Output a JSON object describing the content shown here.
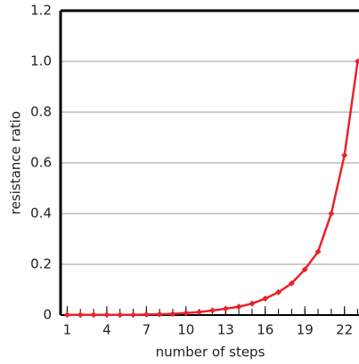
{
  "chart_data": {
    "type": "line",
    "x_label": "number of steps",
    "y_label": "resistance ratio",
    "x": [
      1,
      2,
      3,
      4,
      5,
      6,
      7,
      8,
      9,
      10,
      11,
      12,
      13,
      14,
      15,
      16,
      17,
      18,
      19,
      20,
      21,
      22,
      23
    ],
    "series": [
      {
        "color": "#e8232b",
        "values": [
          0.001,
          0.001,
          0.001,
          0.001,
          0.001,
          0.001,
          0.002,
          0.003,
          0.005,
          0.008,
          0.012,
          0.018,
          0.025,
          0.033,
          0.045,
          0.065,
          0.09,
          0.125,
          0.18,
          0.25,
          0.4,
          0.63,
          1.0
        ]
      }
    ],
    "xlim": [
      0.5,
      23.1
    ],
    "ylim": [
      0,
      1.2
    ],
    "xticks": [
      1,
      4,
      7,
      10,
      13,
      16,
      19,
      22
    ],
    "xminorticks": [
      1,
      2,
      3,
      4,
      5,
      6,
      7,
      8,
      9,
      10,
      11,
      12,
      13,
      14,
      15,
      16,
      17,
      18,
      19,
      20,
      21,
      22,
      23
    ],
    "yticks": [
      0,
      0.2,
      0.4,
      0.6,
      0.8,
      {
        "value": 1,
        "label": "1.0"
      },
      1.2
    ],
    "grid": true
  }
}
